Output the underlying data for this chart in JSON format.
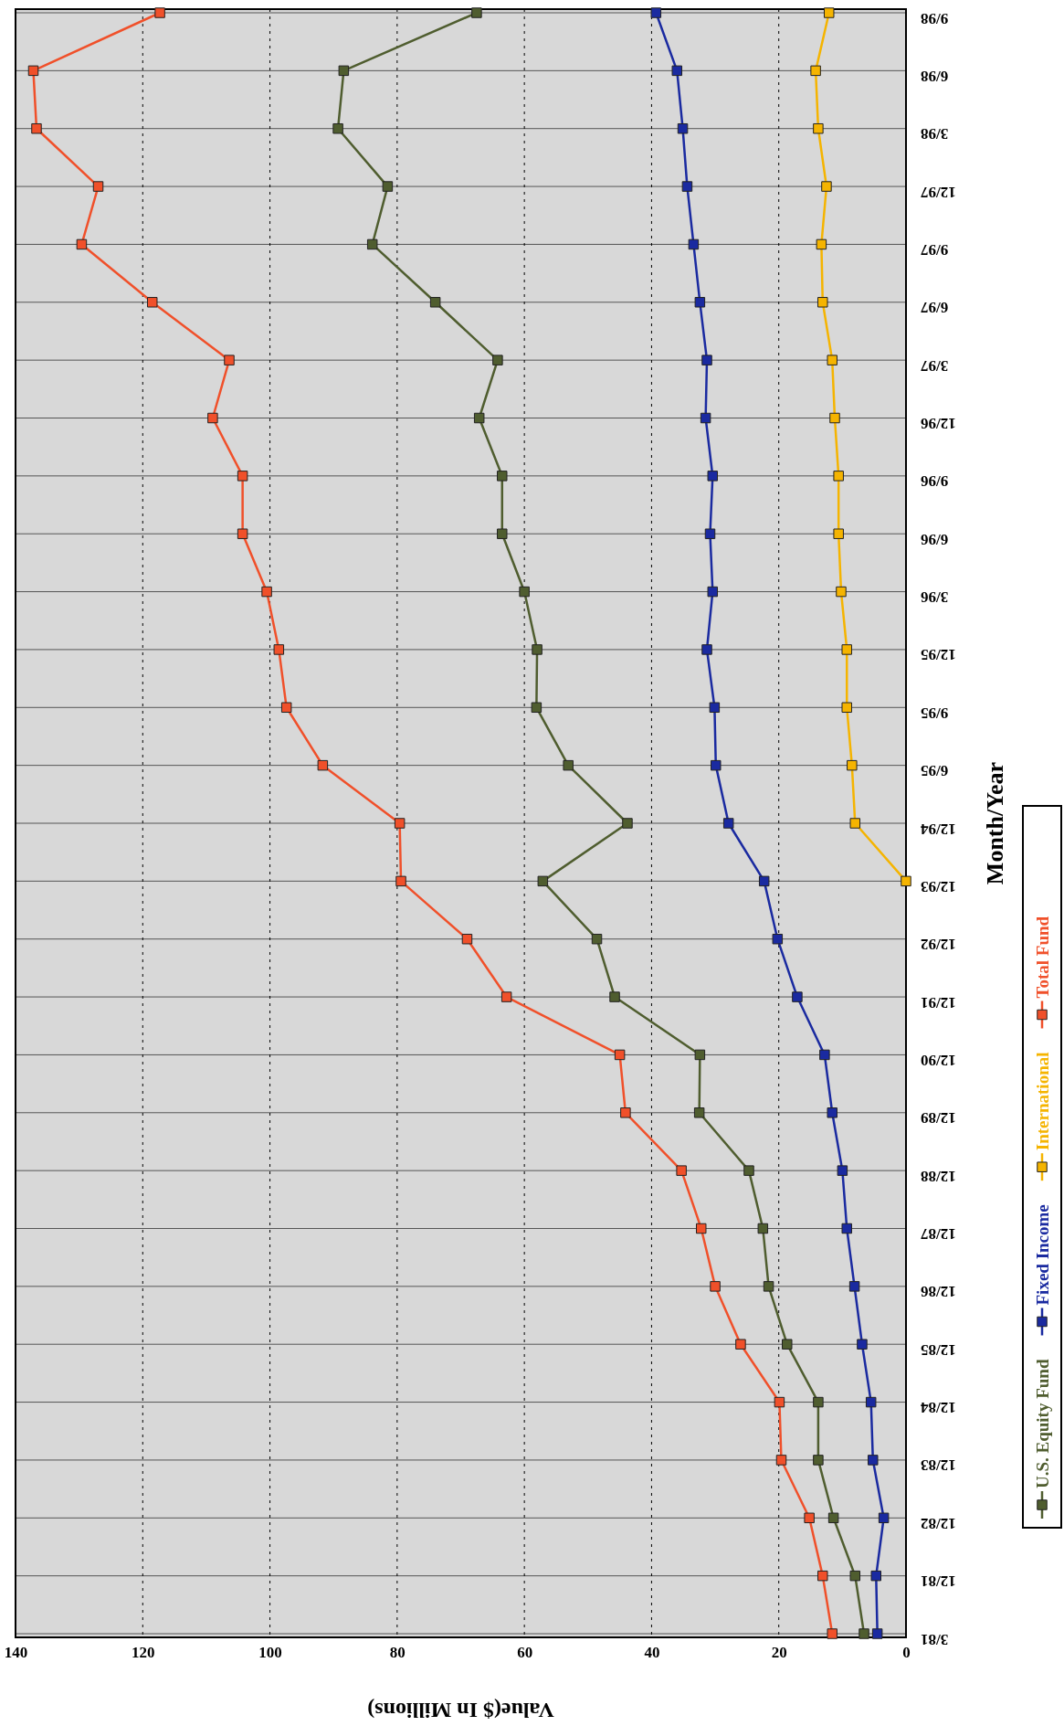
{
  "chart_data": {
    "type": "line",
    "orientation": "horizontal",
    "xlabel": "Value($ In Millions)",
    "ylabel": "Month/Year",
    "categories": [
      "9/98",
      "6/98",
      "3/98",
      "12/97",
      "9/97",
      "6/97",
      "3/97",
      "12/96",
      "9/96",
      "6/96",
      "3/96",
      "12/95",
      "9/95",
      "6/95",
      "12/94",
      "12/93",
      "12/92",
      "12/91",
      "12/90",
      "12/89",
      "12/88",
      "12/87",
      "12/86",
      "12/85",
      "12/84",
      "12/83",
      "12/82",
      "12/81",
      "3/81"
    ],
    "series": [
      {
        "name": "U.S. Equity Fund",
        "color": "#4f5d2f",
        "values": [
          67.5,
          88.4,
          89.3,
          81.5,
          83.9,
          74,
          64.2,
          67.1,
          63.5,
          63.5,
          60,
          58,
          58.1,
          53.1,
          43.8,
          57.1,
          48.6,
          45.8,
          32.4,
          32.5,
          24.7,
          22.5,
          21.6,
          18.7,
          13.8,
          13.8,
          11.4,
          8,
          6.6
        ]
      },
      {
        "name": "Fixed Income",
        "color": "#1a2aa0",
        "values": [
          39.3,
          36,
          35.1,
          34.4,
          33.4,
          32.4,
          31.3,
          31.5,
          30.4,
          30.8,
          30.4,
          31.3,
          30.1,
          29.9,
          27.9,
          22.3,
          20.2,
          17.1,
          12.8,
          11.6,
          10,
          9.3,
          8.1,
          6.9,
          5.5,
          5.2,
          3.5,
          4.7,
          4.5
        ]
      },
      {
        "name": "International",
        "color": "#f5b400",
        "values": [
          12.1,
          14.2,
          13.8,
          12.5,
          13.3,
          13.1,
          11.6,
          11.2,
          10.6,
          10.6,
          10.2,
          9.3,
          9.3,
          8.5,
          8,
          0,
          null,
          null,
          null,
          null,
          null,
          null,
          null,
          null,
          null,
          null,
          null,
          null,
          null
        ]
      },
      {
        "name": "Total Fund",
        "color": "#f0502a",
        "values": [
          117.3,
          137.2,
          136.7,
          127,
          129.6,
          118.5,
          106.4,
          109,
          104.3,
          104.3,
          100.5,
          98.6,
          97.4,
          91.7,
          79.6,
          79.4,
          69,
          62.8,
          45,
          44.1,
          35.3,
          32.2,
          30,
          26,
          19.9,
          19.6,
          15.2,
          13.1,
          11.6
        ]
      }
    ],
    "xlim": [
      140,
      0
    ],
    "xticks": [
      140,
      120,
      100,
      80,
      60,
      40,
      20,
      0
    ],
    "grid": true,
    "legend": "right",
    "marker": "square"
  }
}
